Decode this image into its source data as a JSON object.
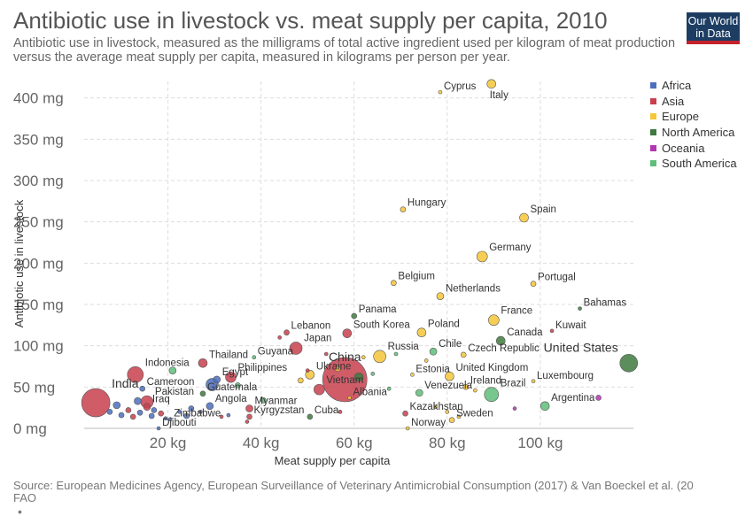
{
  "header": {
    "title": "Antibiotic use in livestock vs. meat supply per capita, 2010",
    "subtitle": "Antibiotic use in livestock, measured as the milligrams of total active ingredient used per kilogram of meat production versus the average meat supply per capita, measured in kilograms per person per year.",
    "logo_line1": "Our World",
    "logo_line2": "in Data"
  },
  "footer": {
    "source": "Source: European Medicines Agency, European Surveillance of Veterinary Antimicrobial Consumption (2017) & Van Boeckel et al. (20",
    "source_line2": "FAO",
    "note": "•"
  },
  "colors": {
    "Africa": "#4c6fbd",
    "Asia": "#c8404e",
    "Europe": "#f5c638",
    "North America": "#3f7a3e",
    "Oceania": "#b336b1",
    "South America": "#5fbd7a"
  },
  "chart_data": {
    "type": "scatter",
    "title": "Antibiotic use in livestock vs. meat supply per capita, 2010",
    "xlabel": "Meat supply per capita",
    "ylabel": "Antibiotic use in livestock",
    "xlim": [
      2,
      120
    ],
    "ylim": [
      0,
      420
    ],
    "xticks": [
      {
        "v": 20,
        "label": "20 kg"
      },
      {
        "v": 40,
        "label": "40 kg"
      },
      {
        "v": 60,
        "label": "60 kg"
      },
      {
        "v": 80,
        "label": "80 kg"
      },
      {
        "v": 100,
        "label": "100 kg"
      }
    ],
    "yticks": [
      {
        "v": 0,
        "label": "0 mg"
      },
      {
        "v": 50,
        "label": "50 mg"
      },
      {
        "v": 100,
        "label": "100 mg"
      },
      {
        "v": 150,
        "label": "150 mg"
      },
      {
        "v": 200,
        "label": "200 mg"
      },
      {
        "v": 250,
        "label": "250 mg"
      },
      {
        "v": 300,
        "label": "300 mg"
      },
      {
        "v": 350,
        "label": "350 mg"
      },
      {
        "v": 400,
        "label": "400 mg"
      }
    ],
    "grid": true,
    "legend_position": "right",
    "legend": [
      "Africa",
      "Asia",
      "Europe",
      "North America",
      "Oceania",
      "South America"
    ],
    "points": [
      {
        "label": "Cyprus",
        "x": 78.5,
        "y": 407,
        "continent": "Europe",
        "size": 2,
        "label_side": "right"
      },
      {
        "label": "Italy",
        "x": 89.5,
        "y": 417,
        "continent": "Europe",
        "size": 5,
        "label_side": "below"
      },
      {
        "label": "Hungary",
        "x": 70.5,
        "y": 265,
        "continent": "Europe",
        "size": 3,
        "label_side": "right"
      },
      {
        "label": "Spain",
        "x": 96.5,
        "y": 255,
        "continent": "Europe",
        "size": 5,
        "label_side": "right"
      },
      {
        "label": "Germany",
        "x": 87.5,
        "y": 208,
        "continent": "Europe",
        "size": 6,
        "label_side": "right"
      },
      {
        "label": "Belgium",
        "x": 68.5,
        "y": 176,
        "continent": "Europe",
        "size": 3,
        "label_side": "right"
      },
      {
        "label": "Portugal",
        "x": 98.5,
        "y": 175,
        "continent": "Europe",
        "size": 3,
        "label_side": "right"
      },
      {
        "label": "Netherlands",
        "x": 78.5,
        "y": 160,
        "continent": "Europe",
        "size": 4,
        "label_side": "right"
      },
      {
        "label": "Bahamas",
        "x": 108.5,
        "y": 145,
        "continent": "North America",
        "size": 2,
        "label_side": "right"
      },
      {
        "label": "Panama",
        "x": 60.0,
        "y": 136,
        "continent": "North America",
        "size": 3,
        "label_side": "right"
      },
      {
        "label": "France",
        "x": 90.0,
        "y": 131,
        "continent": "Europe",
        "size": 6,
        "label_side": "right"
      },
      {
        "label": "Kuwait",
        "x": 102.5,
        "y": 118,
        "continent": "Asia",
        "size": 2,
        "label_side": "right"
      },
      {
        "label": "Lebanon",
        "x": 45.5,
        "y": 116,
        "continent": "Asia",
        "size": 3,
        "label_side": "right"
      },
      {
        "label": "South Korea",
        "x": 58.5,
        "y": 115,
        "continent": "Asia",
        "size": 5,
        "label_side": "right"
      },
      {
        "label": "Poland",
        "x": 74.5,
        "y": 116,
        "continent": "Europe",
        "size": 5,
        "label_side": "right"
      },
      {
        "label": "Canada",
        "x": 91.5,
        "y": 106,
        "continent": "North America",
        "size": 5,
        "label_side": "right"
      },
      {
        "label": "Japan",
        "x": 47.5,
        "y": 97,
        "continent": "Asia",
        "size": 7,
        "label_side": "right"
      },
      {
        "label": "Chile",
        "x": 77.0,
        "y": 93,
        "continent": "South America",
        "size": 4,
        "label_side": "right"
      },
      {
        "label": "Czech Republic",
        "x": 83.5,
        "y": 89,
        "continent": "Europe",
        "size": 3,
        "label_side": "right"
      },
      {
        "label": "Russia",
        "x": 65.5,
        "y": 87,
        "continent": "Europe",
        "size": 7,
        "label_side": "right"
      },
      {
        "label": "Guyana",
        "x": 38.5,
        "y": 86,
        "continent": "South America",
        "size": 2,
        "label_side": "right"
      },
      {
        "label": "Thailand",
        "x": 27.5,
        "y": 79,
        "continent": "Asia",
        "size": 5,
        "label_side": "right"
      },
      {
        "label": "Indonesia",
        "x": 13.0,
        "y": 65,
        "continent": "Asia",
        "size": 9,
        "label_side": "right"
      },
      {
        "label": "United States",
        "x": 119.0,
        "y": 79,
        "continent": "North America",
        "size": 10,
        "label_side": "left"
      },
      {
        "label": "Ukraine",
        "x": 50.5,
        "y": 65,
        "continent": "Europe",
        "size": 5,
        "label_side": "right"
      },
      {
        "label": "Philippines",
        "x": 33.5,
        "y": 62,
        "continent": "Asia",
        "size": 6,
        "label_side": "right"
      },
      {
        "label": "Egypt",
        "x": 30.5,
        "y": 59,
        "continent": "Africa",
        "size": 4,
        "label_side": "right"
      },
      {
        "label": "Estonia",
        "x": 72.5,
        "y": 65,
        "continent": "Europe",
        "size": 2,
        "label_side": "right"
      },
      {
        "label": "United Kingdom",
        "x": 80.5,
        "y": 63,
        "continent": "Europe",
        "size": 5,
        "label_side": "right"
      },
      {
        "label": "Luxembourg",
        "x": 98.5,
        "y": 57,
        "continent": "Europe",
        "size": 2,
        "label_side": "right"
      },
      {
        "label": "China",
        "x": 58.0,
        "y": 59,
        "continent": "Asia",
        "size": 25,
        "label_side": "above"
      },
      {
        "label": "Vietnam",
        "x": 52.5,
        "y": 47,
        "continent": "Asia",
        "size": 6,
        "label_side": "right"
      },
      {
        "label": "Ireland",
        "x": 84.0,
        "y": 50,
        "continent": "Europe",
        "size": 3,
        "label_side": "right"
      },
      {
        "label": "Brazil",
        "x": 89.5,
        "y": 41,
        "continent": "South America",
        "size": 8,
        "label_side": "right"
      },
      {
        "label": "Guatemala",
        "x": 27.5,
        "y": 42,
        "continent": "North America",
        "size": 3,
        "label_side": "right"
      },
      {
        "label": "Cameroon",
        "x": 14.5,
        "y": 48,
        "continent": "Africa",
        "size": 3,
        "label_side": "right"
      },
      {
        "label": "India",
        "x": 4.5,
        "y": 31,
        "continent": "Asia",
        "size": 16,
        "label_side": "right"
      },
      {
        "label": "Pakistan",
        "x": 15.5,
        "y": 32,
        "continent": "Asia",
        "size": 7,
        "label_side": "right"
      },
      {
        "label": "Venezuela",
        "x": 74.0,
        "y": 43,
        "continent": "South America",
        "size": 4,
        "label_side": "right"
      },
      {
        "label": "Albania",
        "x": 59.0,
        "y": 37,
        "continent": "Europe",
        "size": 2,
        "label_side": "right"
      },
      {
        "label": "Argentina",
        "x": 101.0,
        "y": 27,
        "continent": "South America",
        "size": 5,
        "label_side": "right"
      },
      {
        "label": "Angola",
        "x": 29.0,
        "y": 27,
        "continent": "Africa",
        "size": 4,
        "label_side": "right"
      },
      {
        "label": "Myanmar",
        "x": 37.5,
        "y": 24,
        "continent": "Asia",
        "size": 4,
        "label_side": "right"
      },
      {
        "label": "Iraq",
        "x": 15.5,
        "y": 26,
        "continent": "Asia",
        "size": 4,
        "label_side": "right"
      },
      {
        "label": "Kazakhstan",
        "x": 71.0,
        "y": 18,
        "continent": "Asia",
        "size": 3,
        "label_side": "right"
      },
      {
        "label": "Cuba",
        "x": 50.5,
        "y": 14,
        "continent": "North America",
        "size": 3,
        "label_side": "right"
      },
      {
        "label": "Kyrgyzstan",
        "x": 37.5,
        "y": 14,
        "continent": "Asia",
        "size": 3,
        "label_side": "right"
      },
      {
        "label": "Sweden",
        "x": 81.0,
        "y": 10,
        "continent": "Europe",
        "size": 3,
        "label_side": "right"
      },
      {
        "label": "Zimbabwe",
        "x": 20.5,
        "y": 11,
        "continent": "Africa",
        "size": 2,
        "label_side": "right"
      },
      {
        "label": "Norway",
        "x": 71.5,
        "y": 0,
        "continent": "Europe",
        "size": 2,
        "label_side": "right"
      },
      {
        "label": "Djibouti",
        "x": 18.0,
        "y": 0,
        "continent": "Africa",
        "size": 2,
        "label_side": "right"
      },
      {
        "label": "",
        "x": 7.5,
        "y": 20,
        "continent": "Africa",
        "size": 3
      },
      {
        "label": "",
        "x": 9.0,
        "y": 28,
        "continent": "Africa",
        "size": 4
      },
      {
        "label": "",
        "x": 10.0,
        "y": 16,
        "continent": "Africa",
        "size": 3
      },
      {
        "label": "",
        "x": 11.5,
        "y": 22,
        "continent": "Asia",
        "size": 3
      },
      {
        "label": "",
        "x": 12.5,
        "y": 14,
        "continent": "Asia",
        "size": 3
      },
      {
        "label": "",
        "x": 13.5,
        "y": 33,
        "continent": "Africa",
        "size": 4
      },
      {
        "label": "",
        "x": 14.0,
        "y": 19,
        "continent": "Africa",
        "size": 3
      },
      {
        "label": "",
        "x": 16.5,
        "y": 15,
        "continent": "Africa",
        "size": 3
      },
      {
        "label": "",
        "x": 17.0,
        "y": 22,
        "continent": "Africa",
        "size": 3
      },
      {
        "label": "",
        "x": 18.5,
        "y": 18,
        "continent": "Asia",
        "size": 3
      },
      {
        "label": "",
        "x": 19.5,
        "y": 12,
        "continent": "Africa",
        "size": 2
      },
      {
        "label": "",
        "x": 21.0,
        "y": 70,
        "continent": "South America",
        "size": 4
      },
      {
        "label": "",
        "x": 22.5,
        "y": 20,
        "continent": "Africa",
        "size": 2
      },
      {
        "label": "",
        "x": 24.0,
        "y": 15,
        "continent": "Africa",
        "size": 3
      },
      {
        "label": "",
        "x": 25.0,
        "y": 24,
        "continent": "Africa",
        "size": 3
      },
      {
        "label": "",
        "x": 27.0,
        "y": 20,
        "continent": "Africa",
        "size": 2
      },
      {
        "label": "",
        "x": 29.5,
        "y": 53,
        "continent": "Africa",
        "size": 7
      },
      {
        "label": "",
        "x": 31.5,
        "y": 14,
        "continent": "Asia",
        "size": 2
      },
      {
        "label": "",
        "x": 33.0,
        "y": 16,
        "continent": "Africa",
        "size": 2
      },
      {
        "label": "",
        "x": 35.0,
        "y": 52,
        "continent": "South America",
        "size": 3
      },
      {
        "label": "",
        "x": 37.0,
        "y": 8,
        "continent": "Asia",
        "size": 2
      },
      {
        "label": "",
        "x": 40.5,
        "y": 34,
        "continent": "South America",
        "size": 3
      },
      {
        "label": "",
        "x": 44.0,
        "y": 110,
        "continent": "Asia",
        "size": 2
      },
      {
        "label": "",
        "x": 48.5,
        "y": 58,
        "continent": "Europe",
        "size": 3
      },
      {
        "label": "",
        "x": 50.0,
        "y": 70,
        "continent": "Asia",
        "size": 2
      },
      {
        "label": "",
        "x": 54.0,
        "y": 90,
        "continent": "Asia",
        "size": 2
      },
      {
        "label": "",
        "x": 56.5,
        "y": 72,
        "continent": "Europe",
        "size": 3
      },
      {
        "label": "",
        "x": 57.0,
        "y": 20,
        "continent": "Asia",
        "size": 2
      },
      {
        "label": "",
        "x": 61.0,
        "y": 62,
        "continent": "North America",
        "size": 5
      },
      {
        "label": "",
        "x": 62.0,
        "y": 86,
        "continent": "Europe",
        "size": 2
      },
      {
        "label": "",
        "x": 64.0,
        "y": 66,
        "continent": "South America",
        "size": 2
      },
      {
        "label": "",
        "x": 67.5,
        "y": 48,
        "continent": "South America",
        "size": 2
      },
      {
        "label": "",
        "x": 69.0,
        "y": 90,
        "continent": "South America",
        "size": 2
      },
      {
        "label": "",
        "x": 75.5,
        "y": 82,
        "continent": "Europe",
        "size": 2
      },
      {
        "label": "",
        "x": 77.5,
        "y": 26,
        "continent": "Europe",
        "size": 2
      },
      {
        "label": "",
        "x": 80.0,
        "y": 20,
        "continent": "Europe",
        "size": 2
      },
      {
        "label": "",
        "x": 82.5,
        "y": 14,
        "continent": "Europe",
        "size": 2
      },
      {
        "label": "",
        "x": 86.0,
        "y": 46,
        "continent": "Europe",
        "size": 2
      },
      {
        "label": "",
        "x": 94.5,
        "y": 24,
        "continent": "Oceania",
        "size": 2
      },
      {
        "label": "",
        "x": 112.5,
        "y": 37,
        "continent": "Oceania",
        "size": 3
      }
    ]
  }
}
